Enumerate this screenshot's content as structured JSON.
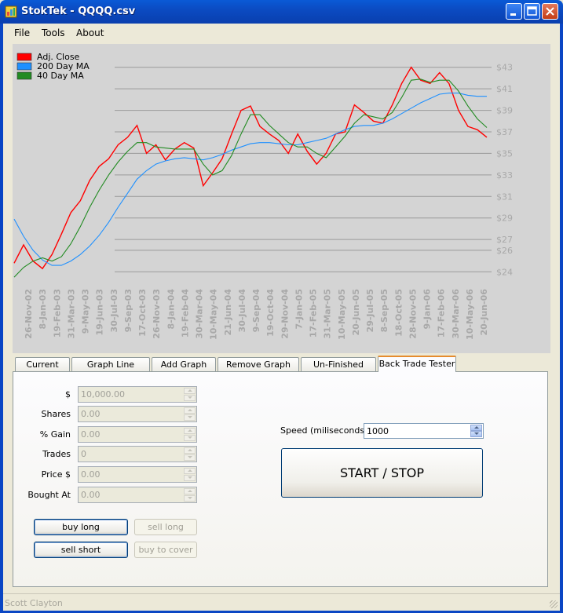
{
  "window": {
    "title": "StokTek - QQQQ.csv",
    "icons": {
      "app": "app-chart-icon",
      "minimize": "minimize-icon",
      "maximize": "maximize-icon",
      "close": "close-icon"
    }
  },
  "menu": [
    "File",
    "Tools",
    "About"
  ],
  "chart_data": {
    "type": "line",
    "title": "",
    "xlabel": "",
    "ylabel": "",
    "ylim": [
      23,
      44
    ],
    "y_ticks": [
      "$43",
      "$41",
      "$39",
      "$37",
      "$35",
      "$33",
      "$31",
      "$29",
      "$27",
      "$26",
      "$24"
    ],
    "x_tick_labels": [
      "26-Nov-02",
      "8-Jan-03",
      "19-Feb-03",
      "31-Mar-03",
      "9-May-03",
      "19-Jun-03",
      "30-Jul-03",
      "9-Sep-03",
      "17-Oct-03",
      "26-Nov-03",
      "8-Jan-04",
      "19-Feb-04",
      "30-Mar-04",
      "10-May-04",
      "21-Jun-04",
      "30-Jul-04",
      "9-Sep-04",
      "19-Oct-04",
      "29-Nov-04",
      "7-Jan-05",
      "17-Feb-05",
      "31-Mar-05",
      "10-May-05",
      "20-Jun-05",
      "29-Jul-05",
      "8-Sep-05",
      "18-Oct-05",
      "28-Nov-05",
      "9-Jan-06",
      "17-Feb-06",
      "30-Mar-06",
      "10-May-06",
      "20-Jun-06"
    ],
    "legend": {
      "placement": "top-left"
    },
    "grid": true,
    "series": [
      {
        "name": "Adj. Close",
        "color": "#ff0000",
        "values": [
          24.8,
          26.5,
          25.0,
          24.3,
          25.6,
          27.5,
          29.5,
          30.6,
          32.5,
          33.8,
          34.5,
          35.8,
          36.5,
          37.6,
          35.0,
          35.8,
          34.4,
          35.4,
          36.0,
          35.5,
          32.0,
          33.2,
          34.5,
          36.8,
          39.0,
          39.4,
          37.5,
          36.8,
          36.2,
          35.0,
          36.8,
          35.2,
          34.0,
          35.0,
          36.8,
          37.0,
          39.5,
          38.8,
          38.0,
          37.8,
          39.5,
          41.5,
          43.0,
          41.8,
          41.5,
          42.5,
          41.5,
          39.0,
          37.5,
          37.2,
          36.5
        ]
      },
      {
        "name": "200 Day MA",
        "color": "#1e90ff",
        "values": [
          28.9,
          27.3,
          26.0,
          25.1,
          24.6,
          24.6,
          25.0,
          25.6,
          26.4,
          27.4,
          28.6,
          30.0,
          31.3,
          32.6,
          33.4,
          34.0,
          34.3,
          34.5,
          34.6,
          34.5,
          34.4,
          34.6,
          34.9,
          35.3,
          35.6,
          35.9,
          36.0,
          36.0,
          35.9,
          35.8,
          35.8,
          36.0,
          36.2,
          36.4,
          36.8,
          37.2,
          37.5,
          37.6,
          37.6,
          37.8,
          38.2,
          38.7,
          39.2,
          39.7,
          40.1,
          40.5,
          40.6,
          40.6,
          40.4,
          40.3,
          40.3
        ]
      },
      {
        "name": "40 Day MA",
        "color": "#228b22",
        "values": [
          23.5,
          24.4,
          25.0,
          25.3,
          25.0,
          25.4,
          26.6,
          28.2,
          30.0,
          31.6,
          33.0,
          34.2,
          35.2,
          36.0,
          36.0,
          35.6,
          35.5,
          35.4,
          35.4,
          35.4,
          34.0,
          33.0,
          33.4,
          34.8,
          36.8,
          38.6,
          38.6,
          37.6,
          36.8,
          36.0,
          35.6,
          35.6,
          35.0,
          34.6,
          35.6,
          36.6,
          37.8,
          38.6,
          38.4,
          38.2,
          38.8,
          40.2,
          41.8,
          41.9,
          41.6,
          41.8,
          41.8,
          40.8,
          39.4,
          38.2,
          37.4
        ]
      }
    ]
  },
  "tabs": [
    "Current Data",
    "Graph Line Control",
    "Add Graph Line",
    "Remove Graph Line",
    "Un-Finished Tools",
    "Back Trade Tester"
  ],
  "fields": [
    {
      "label": "$",
      "value": "10,000.00"
    },
    {
      "label": "Shares",
      "value": "0.00"
    },
    {
      "label": "% Gain",
      "value": "0.00"
    },
    {
      "label": "Trades",
      "value": "0"
    },
    {
      "label": "Price $",
      "value": "0.00"
    },
    {
      "label": "Bought At",
      "value": "0.00"
    }
  ],
  "buttons": {
    "buy_long": "buy long",
    "sell_long": "sell long",
    "sell_short": "sell short",
    "buy_to_cover": "buy to cover",
    "start_stop": "START / STOP"
  },
  "speed": {
    "label": "Speed (miliseconds):",
    "value": "1000"
  },
  "status": "Scott Clayton"
}
